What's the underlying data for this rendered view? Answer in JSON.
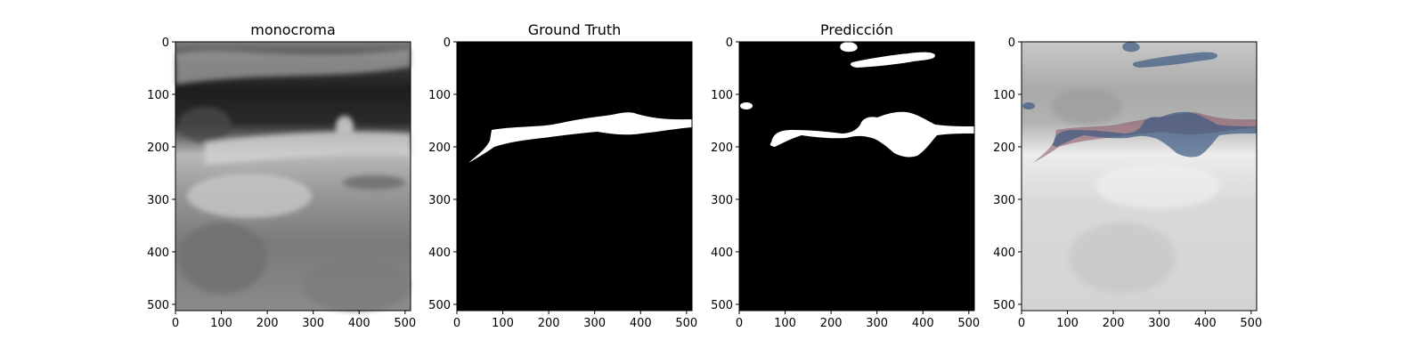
{
  "figure": {
    "panels": [
      {
        "id": "monochrome",
        "title": "monocroma",
        "image": "grayscale carotid ultrasound B-mode image"
      },
      {
        "id": "ground-truth",
        "title": "Ground Truth",
        "image": "binary segmentation mask"
      },
      {
        "id": "prediction",
        "title": "Predicción",
        "image": "predicted binary segmentation mask"
      },
      {
        "id": "overlay",
        "title": "",
        "image": "ultrasound with ground truth (red) and prediction (blue) overlay"
      }
    ],
    "axes": {
      "xticks": [
        "0",
        "100",
        "200",
        "300",
        "400",
        "500"
      ],
      "yticks": [
        "0",
        "100",
        "200",
        "300",
        "400",
        "500"
      ],
      "xlim": [
        0,
        512
      ],
      "ylim": [
        512,
        0
      ]
    },
    "colors": {
      "mask": "#ffffff",
      "background": "#000000",
      "gt_overlay": "#8a5060",
      "pred_overlay": "#3c5a82"
    }
  }
}
